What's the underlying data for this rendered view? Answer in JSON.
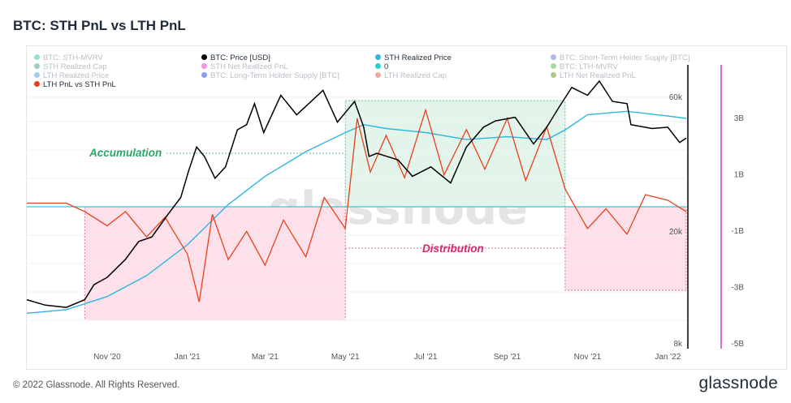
{
  "title": "BTC: STH PnL vs LTH PnL",
  "footer": "© 2022 Glassnode. All Rights Reserved.",
  "brand": "glassnode",
  "watermark": "glassnode",
  "legend": [
    {
      "label": "BTC: STH-MVRV",
      "color": "#3ec9b0",
      "active": false
    },
    {
      "label": "BTC: Price [USD]",
      "color": "#000000",
      "active": true
    },
    {
      "label": "STH Realized Price",
      "color": "#2bb6e0",
      "active": true
    },
    {
      "label": "BTC: Short-Term Holder Supply [BTC]",
      "color": "#6a78d8",
      "active": false
    },
    {
      "label": "STH Realized Cap",
      "color": "#4aa87a",
      "active": false
    },
    {
      "label": "STH Net Realized PnL",
      "color": "#e040d0",
      "active": false
    },
    {
      "label": "0",
      "color": "#2bcfd0",
      "active": true
    },
    {
      "label": "BTC: LTH-MVRV",
      "color": "#5cb85c",
      "active": false
    },
    {
      "label": "LTH Realized Price",
      "color": "#5aa0d8",
      "active": false
    },
    {
      "label": "BTC: Long-Term Holder Supply [BTC]",
      "color": "#2d4de0",
      "active": false
    },
    {
      "label": "LTH Realized Cap",
      "color": "#d86a4a",
      "active": false
    },
    {
      "label": "LTH Net Realized PnL",
      "color": "#6a9a2a",
      "active": false
    },
    {
      "label": "LTH PnL vs STH PnL",
      "color": "#e8401c",
      "active": true
    }
  ],
  "annotations": {
    "accumulation": "Accumulation",
    "distribution": "Distribution"
  },
  "colors": {
    "price": "#000000",
    "sth_realized": "#2bb6e0",
    "pnl": "#e8401c",
    "zero": "#2bcfd0",
    "accumulation_fill": "#e3f4ea",
    "accumulation_text": "#2aa866",
    "distribution_fill": "#fde0ea",
    "distribution_text": "#d4286e",
    "right_bar": "#d63cc8"
  },
  "chart_data": {
    "type": "line",
    "title": "BTC: STH PnL vs LTH PnL",
    "x_ticks": [
      "Nov '20",
      "Jan '21",
      "Mar '21",
      "May '21",
      "Jul '21",
      "Sep '21",
      "Nov '21",
      "Jan '22"
    ],
    "y_left": {
      "scale": "log",
      "ticks": [
        "60k",
        "20k",
        "8k"
      ]
    },
    "y_right": {
      "ticks": [
        "3B",
        "1B",
        "-1B",
        "-3B",
        "-5B"
      ],
      "range": [
        -5,
        5
      ]
    },
    "regions": [
      {
        "label": "Accumulation",
        "from": "2021-05-01",
        "to": "2021-10-15",
        "sentiment": "accumulation"
      },
      {
        "label": "Distribution",
        "from": "2020-10-15",
        "to": "2021-05-01",
        "sentiment": "distribution"
      },
      {
        "label": "Distribution",
        "from": "2021-10-15",
        "to": "2022-01-15",
        "sentiment": "distribution"
      }
    ],
    "series": [
      {
        "name": "BTC: Price [USD]",
        "axis": "left",
        "points": [
          [
            "2020-09-01",
            11500
          ],
          [
            "2020-09-15",
            11000
          ],
          [
            "2020-10-01",
            10800
          ],
          [
            "2020-10-15",
            11500
          ],
          [
            "2020-10-22",
            13000
          ],
          [
            "2020-11-01",
            13800
          ],
          [
            "2020-11-15",
            16000
          ],
          [
            "2020-11-25",
            18500
          ],
          [
            "2020-12-05",
            19200
          ],
          [
            "2020-12-17",
            23000
          ],
          [
            "2020-12-27",
            26500
          ],
          [
            "2021-01-02",
            33000
          ],
          [
            "2021-01-08",
            40000
          ],
          [
            "2021-01-14",
            37000
          ],
          [
            "2021-01-22",
            31000
          ],
          [
            "2021-01-30",
            34000
          ],
          [
            "2021-02-08",
            46000
          ],
          [
            "2021-02-15",
            48000
          ],
          [
            "2021-02-21",
            57000
          ],
          [
            "2021-02-28",
            45000
          ],
          [
            "2021-03-13",
            61000
          ],
          [
            "2021-03-25",
            52000
          ],
          [
            "2021-04-05",
            58000
          ],
          [
            "2021-04-14",
            63500
          ],
          [
            "2021-04-25",
            49000
          ],
          [
            "2021-05-08",
            58000
          ],
          [
            "2021-05-15",
            47000
          ],
          [
            "2021-05-19",
            37000
          ],
          [
            "2021-05-25",
            38000
          ],
          [
            "2021-06-10",
            36000
          ],
          [
            "2021-06-21",
            31500
          ],
          [
            "2021-07-05",
            34000
          ],
          [
            "2021-07-20",
            29800
          ],
          [
            "2021-08-01",
            40000
          ],
          [
            "2021-08-14",
            47000
          ],
          [
            "2021-08-23",
            49500
          ],
          [
            "2021-09-07",
            51000
          ],
          [
            "2021-09-21",
            41000
          ],
          [
            "2021-10-01",
            47000
          ],
          [
            "2021-10-10",
            55000
          ],
          [
            "2021-10-20",
            65000
          ],
          [
            "2021-11-01",
            61000
          ],
          [
            "2021-11-10",
            68500
          ],
          [
            "2021-11-20",
            58000
          ],
          [
            "2021-12-01",
            57000
          ],
          [
            "2021-12-04",
            48000
          ],
          [
            "2021-12-20",
            46500
          ],
          [
            "2022-01-01",
            47000
          ],
          [
            "2022-01-10",
            41500
          ],
          [
            "2022-01-15",
            43000
          ]
        ]
      },
      {
        "name": "STH Realized Price",
        "axis": "left",
        "points": [
          [
            "2020-09-01",
            10300
          ],
          [
            "2020-10-01",
            10600
          ],
          [
            "2020-11-01",
            11800
          ],
          [
            "2020-12-01",
            14000
          ],
          [
            "2021-01-01",
            18000
          ],
          [
            "2021-02-01",
            25000
          ],
          [
            "2021-03-01",
            31500
          ],
          [
            "2021-04-01",
            38500
          ],
          [
            "2021-05-01",
            45000
          ],
          [
            "2021-05-15",
            48000
          ],
          [
            "2021-06-01",
            46500
          ],
          [
            "2021-07-01",
            45000
          ],
          [
            "2021-08-01",
            42500
          ],
          [
            "2021-09-01",
            43500
          ],
          [
            "2021-10-01",
            42500
          ],
          [
            "2021-10-15",
            46000
          ],
          [
            "2021-11-01",
            52000
          ],
          [
            "2021-12-01",
            53500
          ],
          [
            "2022-01-01",
            51500
          ],
          [
            "2022-01-15",
            50500
          ]
        ]
      },
      {
        "name": "LTH PnL vs STH PnL",
        "axis": "right",
        "points": [
          [
            "2020-09-01",
            0.0
          ],
          [
            "2020-10-01",
            0.0
          ],
          [
            "2020-10-15",
            -0.3
          ],
          [
            "2020-11-01",
            -0.8
          ],
          [
            "2020-11-15",
            -0.3
          ],
          [
            "2020-12-01",
            -1.2
          ],
          [
            "2020-12-15",
            -0.5
          ],
          [
            "2021-01-01",
            -1.8
          ],
          [
            "2021-01-10",
            -3.5
          ],
          [
            "2021-01-20",
            -0.4
          ],
          [
            "2021-02-01",
            -2.0
          ],
          [
            "2021-02-15",
            -1.0
          ],
          [
            "2021-03-01",
            -2.2
          ],
          [
            "2021-03-15",
            -0.6
          ],
          [
            "2021-04-01",
            -1.9
          ],
          [
            "2021-04-15",
            0.2
          ],
          [
            "2021-05-01",
            -0.9
          ],
          [
            "2021-05-10",
            3.0
          ],
          [
            "2021-05-20",
            1.1
          ],
          [
            "2021-06-01",
            2.4
          ],
          [
            "2021-06-15",
            0.9
          ],
          [
            "2021-07-01",
            3.3
          ],
          [
            "2021-07-15",
            1.0
          ],
          [
            "2021-08-01",
            2.6
          ],
          [
            "2021-08-15",
            1.2
          ],
          [
            "2021-09-01",
            3.0
          ],
          [
            "2021-09-15",
            0.8
          ],
          [
            "2021-10-01",
            2.7
          ],
          [
            "2021-10-15",
            0.5
          ],
          [
            "2021-11-01",
            -0.9
          ],
          [
            "2021-11-15",
            -0.2
          ],
          [
            "2021-12-01",
            -1.1
          ],
          [
            "2021-12-15",
            0.3
          ],
          [
            "2022-01-01",
            0.1
          ],
          [
            "2022-01-15",
            -0.3
          ]
        ]
      }
    ]
  }
}
